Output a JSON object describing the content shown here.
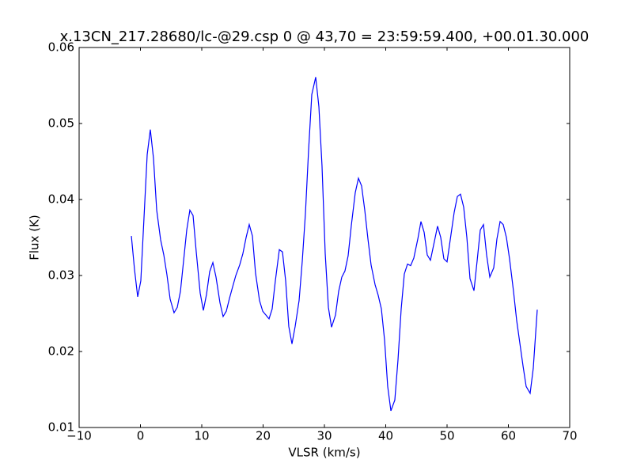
{
  "chart_data": {
    "type": "line",
    "title": "x.13CN_217.28680/lc-@29.csp 0 @ 43,70 = 23:59:59.400, +00.01.30.000",
    "x_label": "VLSR (km/s)",
    "y_label": "Flux (K)",
    "xlim": [
      -10,
      70
    ],
    "xticks": [
      {
        "value": -10,
        "label": "−10"
      },
      0,
      10,
      20,
      30,
      40,
      50,
      60,
      70
    ],
    "ylim": [
      0.01,
      0.06
    ],
    "yticks": [
      0.01,
      0.02,
      0.03,
      0.04,
      0.05,
      0.06
    ],
    "grid": false,
    "series": [
      {
        "color": "#0000ff",
        "x": [
          -1.48,
          -0.97,
          -0.45,
          0.06,
          0.58,
          1.1,
          1.61,
          2.13,
          2.65,
          3.29,
          3.81,
          4.32,
          4.84,
          5.48,
          6.0,
          6.52,
          7.03,
          7.55,
          8.06,
          8.58,
          9.1,
          9.74,
          10.26,
          10.77,
          11.29,
          11.81,
          12.32,
          12.97,
          13.48,
          14.0,
          14.52,
          15.03,
          15.55,
          16.19,
          16.71,
          17.23,
          17.74,
          18.26,
          18.77,
          19.42,
          19.94,
          20.45,
          20.97,
          21.48,
          22.0,
          22.65,
          23.16,
          23.68,
          24.19,
          24.71,
          25.23,
          25.87,
          26.39,
          26.9,
          27.42,
          27.94,
          28.58,
          29.1,
          29.61,
          30.13,
          30.65,
          31.16,
          31.81,
          32.32,
          32.84,
          33.35,
          33.87,
          34.39,
          35.03,
          35.55,
          36.06,
          36.58,
          37.1,
          37.61,
          38.26,
          38.77,
          39.29,
          39.81,
          40.32,
          40.84,
          41.48,
          42.0,
          42.52,
          43.03,
          43.55,
          44.06,
          44.58,
          45.23,
          45.74,
          46.26,
          46.77,
          47.29,
          47.94,
          48.45,
          48.97,
          49.48,
          50.0,
          50.52,
          51.16,
          51.68,
          52.19,
          52.71,
          53.23,
          53.74,
          54.39,
          54.9,
          55.42,
          55.94,
          56.45,
          56.97,
          57.61,
          58.13,
          58.65,
          59.16,
          59.68,
          60.19,
          60.84,
          61.35,
          61.87,
          62.39,
          62.9,
          63.55,
          64.06,
          64.71
        ],
        "values": [
          0.0352,
          0.0308,
          0.0272,
          0.0293,
          0.0376,
          0.0459,
          0.0492,
          0.0454,
          0.0386,
          0.0347,
          0.0327,
          0.0301,
          0.0269,
          0.0251,
          0.0258,
          0.0279,
          0.0319,
          0.036,
          0.0386,
          0.0379,
          0.0331,
          0.0277,
          0.0254,
          0.0275,
          0.0305,
          0.0317,
          0.0298,
          0.0264,
          0.0246,
          0.0253,
          0.027,
          0.0285,
          0.03,
          0.0314,
          0.0329,
          0.035,
          0.0367,
          0.0352,
          0.0303,
          0.0267,
          0.0253,
          0.0248,
          0.0243,
          0.0256,
          0.0293,
          0.0334,
          0.0331,
          0.0293,
          0.0233,
          0.021,
          0.0233,
          0.0267,
          0.0319,
          0.0381,
          0.0465,
          0.0538,
          0.0561,
          0.0522,
          0.0444,
          0.0329,
          0.0258,
          0.0232,
          0.0248,
          0.0279,
          0.0298,
          0.0306,
          0.0326,
          0.0366,
          0.0409,
          0.0428,
          0.0418,
          0.0386,
          0.0348,
          0.0314,
          0.0288,
          0.0274,
          0.0256,
          0.0215,
          0.0154,
          0.0122,
          0.0136,
          0.0189,
          0.0256,
          0.0302,
          0.0315,
          0.0313,
          0.0323,
          0.0348,
          0.0371,
          0.0357,
          0.0327,
          0.032,
          0.0345,
          0.0365,
          0.035,
          0.0322,
          0.0318,
          0.0347,
          0.0383,
          0.0404,
          0.0407,
          0.039,
          0.035,
          0.0296,
          0.028,
          0.0319,
          0.036,
          0.0367,
          0.0327,
          0.0298,
          0.031,
          0.0348,
          0.0371,
          0.0367,
          0.035,
          0.0322,
          0.0279,
          0.0241,
          0.0211,
          0.0181,
          0.0154,
          0.0145,
          0.0178,
          0.0255
        ]
      }
    ]
  }
}
